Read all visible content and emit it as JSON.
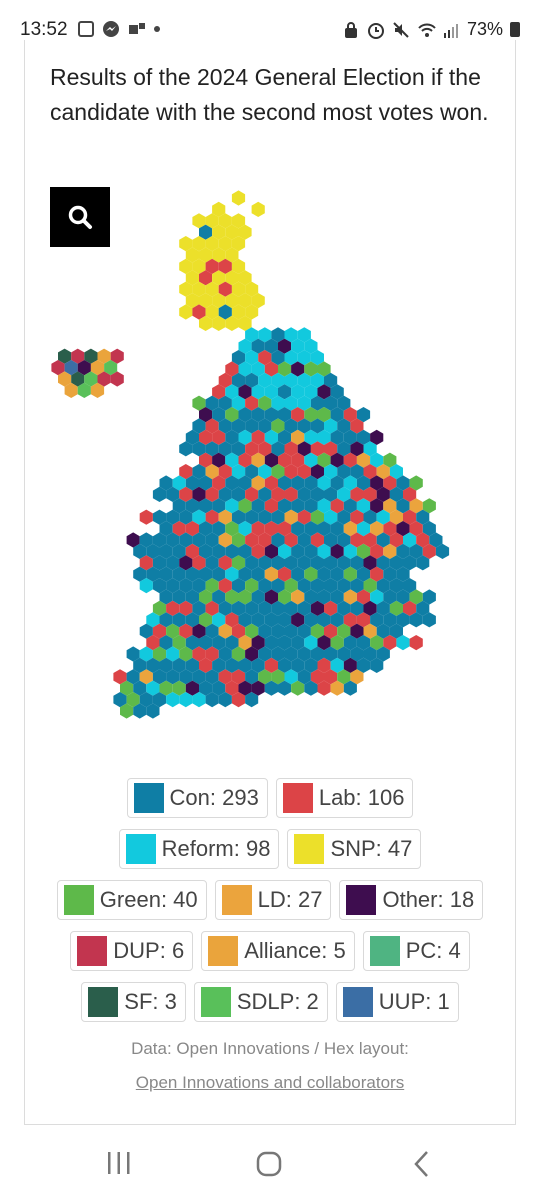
{
  "status_bar": {
    "time": "13:52",
    "battery": "73%",
    "icons": [
      "outlook-icon",
      "messenger-icon",
      "teams-icon",
      "dot-icon",
      "lock-icon",
      "alarm-icon",
      "mute-icon",
      "wifi-icon",
      "signal-icon",
      "battery-icon"
    ]
  },
  "headline": "Results of the 2024 General Election if the candidate with the second most votes won.",
  "zoom_button": {
    "icon": "search-icon"
  },
  "legend": [
    {
      "label": "Con: 293",
      "color": "#0f7ea5",
      "party": "Con",
      "seats": 293
    },
    {
      "label": "Lab: 106",
      "color": "#dc4447",
      "party": "Lab",
      "seats": 106
    },
    {
      "label": "Reform: 98",
      "color": "#12c9de",
      "party": "Reform",
      "seats": 98
    },
    {
      "label": "SNP: 47",
      "color": "#ece02a",
      "party": "SNP",
      "seats": 47
    },
    {
      "label": "Green: 40",
      "color": "#5eb94a",
      "party": "Green",
      "seats": 40
    },
    {
      "label": "LD: 27",
      "color": "#eba43d",
      "party": "LD",
      "seats": 27
    },
    {
      "label": "Other: 18",
      "color": "#3e0d4f",
      "party": "Other",
      "seats": 18
    },
    {
      "label": "DUP: 6",
      "color": "#c2354f",
      "party": "DUP",
      "seats": 6
    },
    {
      "label": "Alliance: 5",
      "color": "#eaa43c",
      "party": "Alliance",
      "seats": 5
    },
    {
      "label": "PC: 4",
      "color": "#4fb482",
      "party": "PC",
      "seats": 4
    },
    {
      "label": "SF: 3",
      "color": "#2a5e4b",
      "party": "SF",
      "seats": 3
    },
    {
      "label": "SDLP: 2",
      "color": "#59c05a",
      "party": "SDLP",
      "seats": 2
    },
    {
      "label": "UUP: 1",
      "color": "#3b6ea5",
      "party": "UUP",
      "seats": 1
    }
  ],
  "credit_line": "Data: Open Innovations / Hex layout:",
  "credit_link": "Open Innovations and collaborators",
  "nav": {
    "recent": "recent-apps-icon",
    "home": "home-icon",
    "back": "back-icon"
  }
}
